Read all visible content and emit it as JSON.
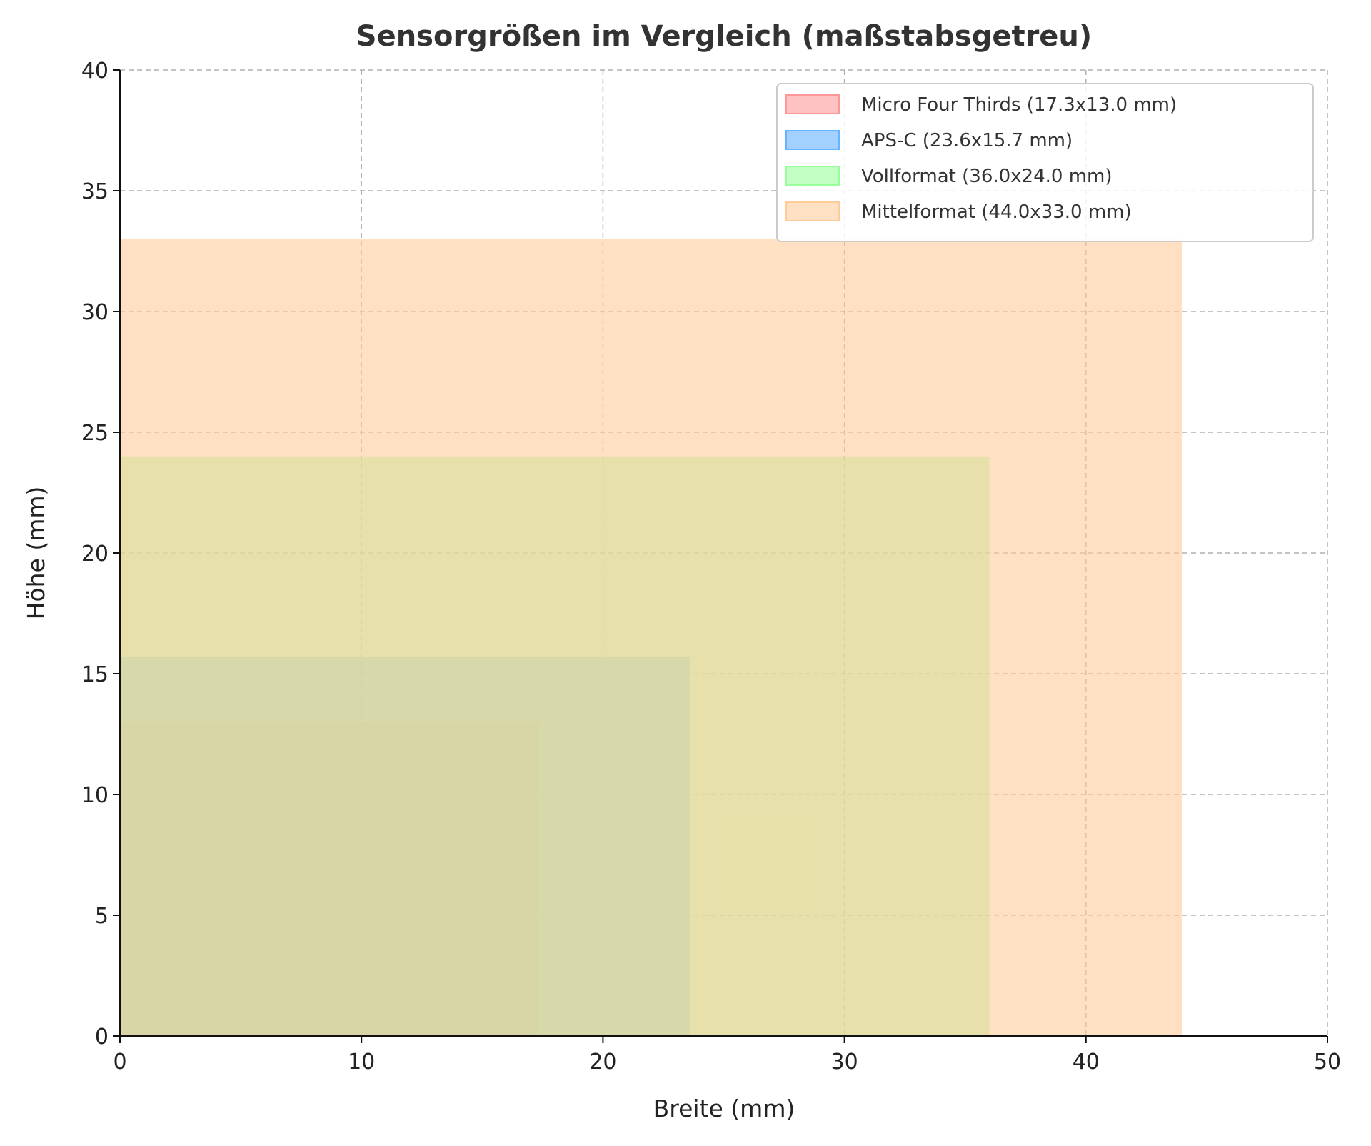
{
  "chart_data": {
    "type": "area",
    "title": "Sensorgrößen im Vergleich (maßstabsgetreu)",
    "xlabel": "Breite (mm)",
    "ylabel": "Höhe (mm)",
    "xlim": [
      0,
      50
    ],
    "ylim": [
      0,
      40
    ],
    "xticks": [
      "0",
      "10",
      "20",
      "30",
      "40",
      "50"
    ],
    "yticks": [
      "0",
      "5",
      "10",
      "15",
      "20",
      "25",
      "30",
      "35",
      "40"
    ],
    "grid": true,
    "legend_position": "top-right",
    "series": [
      {
        "name": "Micro Four Thirds (17.3x13.0 mm)",
        "width": 17.3,
        "height": 13.0,
        "color": "#ff9999"
      },
      {
        "name": "APS-C (23.6x15.7 mm)",
        "width": 23.6,
        "height": 15.7,
        "color": "#66b3ff"
      },
      {
        "name": "Vollformat (36.0x24.0 mm)",
        "width": 36.0,
        "height": 24.0,
        "color": "#99ff99"
      },
      {
        "name": "Mittelformat (44.0x33.0 mm)",
        "width": 44.0,
        "height": 33.0,
        "color": "#ffcc99"
      }
    ]
  }
}
